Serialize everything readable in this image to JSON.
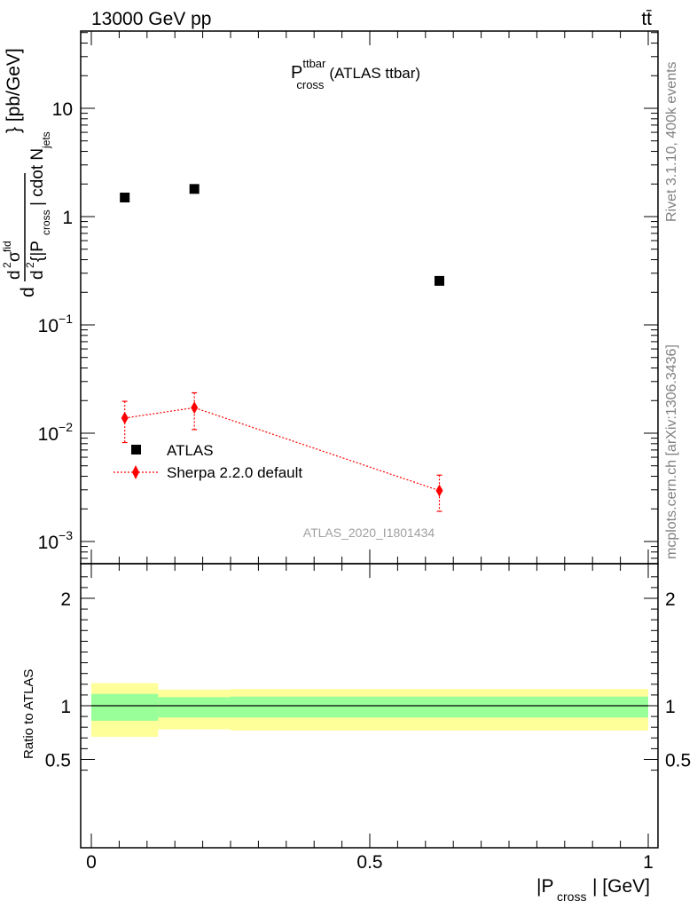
{
  "header": {
    "left": "13000 GeV pp",
    "right": "tt̄"
  },
  "side_labels": {
    "rivet": "Rivet 3.1.10,  400k events",
    "mcplots": "mcplots.cern.ch [arXiv:1306.3436]"
  },
  "chart_data": [
    {
      "type": "scatter",
      "title": "P_cross^ttbar (ATLAS ttbar)",
      "title_main": "P",
      "title_sup": "ttbar",
      "title_sub": "cross",
      "title_rest": "(ATLAS ttbar)",
      "ylabel": "d²σ^fid / d²{|P_cross| cdot N_jets} [pb/GeV]",
      "yscale": "log",
      "ylim": [
        0.0007,
        60
      ],
      "xlim": [
        -0.02,
        1.02
      ],
      "yticks": [
        {
          "value": 0.001,
          "base": "10",
          "exp": "−3"
        },
        {
          "value": 0.01,
          "base": "10",
          "exp": "−2"
        },
        {
          "value": 0.1,
          "base": "10",
          "exp": "−1"
        },
        {
          "value": 1,
          "base": "1",
          "exp": ""
        },
        {
          "value": 10,
          "base": "10",
          "exp": ""
        }
      ],
      "watermark": "ATLAS_2020_I1801434",
      "legend_position": "lower-left",
      "series": [
        {
          "name": "ATLAS",
          "color": "#000000",
          "marker": "square",
          "x": [
            0.06,
            0.185,
            0.625
          ],
          "y": [
            1.5,
            1.8,
            0.255
          ]
        },
        {
          "name": "Sherpa 2.2.0 default",
          "color": "#ff0000",
          "marker": "diamond",
          "line": "dotted",
          "x": [
            0.06,
            0.185,
            0.625
          ],
          "y": [
            0.0138,
            0.0172,
            0.00295
          ],
          "yerr_low": [
            0.0082,
            0.0108,
            0.0019
          ],
          "yerr_high": [
            0.0197,
            0.0236,
            0.0041
          ]
        }
      ]
    },
    {
      "type": "area",
      "ylabel": "Ratio to ATLAS",
      "xlabel": "|P_cross| [GeV]",
      "xlim": [
        -0.02,
        1.02
      ],
      "ylim": [
        0.35,
        2.25
      ],
      "xticks": [
        0,
        0.5,
        1
      ],
      "xtick_labels": [
        "0",
        "0.5",
        "1"
      ],
      "yticks": [
        0.5,
        1,
        2
      ],
      "ytick_labels": [
        "0.5",
        "1",
        "2"
      ],
      "reference_line": 1,
      "bands": [
        {
          "x0": 0.0,
          "x1": 0.12,
          "inner": [
            0.86,
            1.11
          ],
          "outer": [
            0.71,
            1.21
          ]
        },
        {
          "x0": 0.12,
          "x1": 0.25,
          "inner": [
            0.89,
            1.08
          ],
          "outer": [
            0.78,
            1.15
          ]
        },
        {
          "x0": 0.25,
          "x1": 1.0,
          "inner": [
            0.89,
            1.085
          ],
          "outer": [
            0.77,
            1.155
          ]
        }
      ],
      "colors": {
        "inner": "#99ff99",
        "outer": "#ffff99"
      }
    }
  ]
}
